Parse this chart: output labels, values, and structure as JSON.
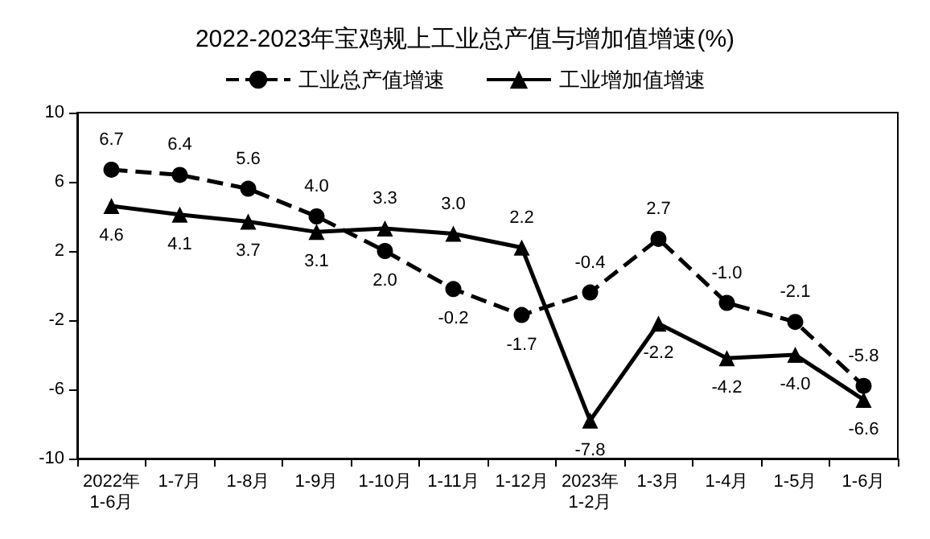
{
  "chart_data": {
    "type": "line",
    "title": "2022-2023年宝鸡规上工业总产值与增加值增速(%)",
    "categories": [
      "2022年\n1-6月",
      "1-7月",
      "1-8月",
      "1-9月",
      "1-10月",
      "1-11月",
      "1-12月",
      "2023年\n1-2月",
      "1-3月",
      "1-4月",
      "1-5月",
      "1-6月"
    ],
    "series": [
      {
        "name": "工业总产值增速",
        "color": "#000000",
        "marker": "circle",
        "line_style": "dashed",
        "values": [
          6.7,
          6.4,
          5.6,
          4.0,
          2.0,
          -0.2,
          -1.7,
          -0.4,
          2.7,
          -1.0,
          -2.1,
          -5.8
        ],
        "value_labels": [
          "6.7",
          "6.4",
          "5.6",
          "4.0",
          "2.0",
          "-0.2",
          "-1.7",
          "-0.4",
          "2.7",
          "-1.0",
          "-2.1",
          "-5.8"
        ]
      },
      {
        "name": "工业增加值增速",
        "color": "#000000",
        "marker": "triangle",
        "line_style": "solid",
        "values": [
          4.6,
          4.1,
          3.7,
          3.1,
          3.3,
          3.0,
          2.2,
          -7.8,
          -2.2,
          -4.2,
          -4.0,
          -6.6
        ],
        "value_labels": [
          "4.6",
          "4.1",
          "3.7",
          "3.1",
          "3.3",
          "3.0",
          "2.2",
          "-7.8",
          "-2.2",
          "-4.2",
          "-4.0",
          "-6.6"
        ]
      }
    ],
    "ylim": [
      -10,
      10
    ],
    "yticks": [
      -10,
      -6,
      -2,
      2,
      6,
      10
    ],
    "grid": false,
    "legend": "top"
  }
}
